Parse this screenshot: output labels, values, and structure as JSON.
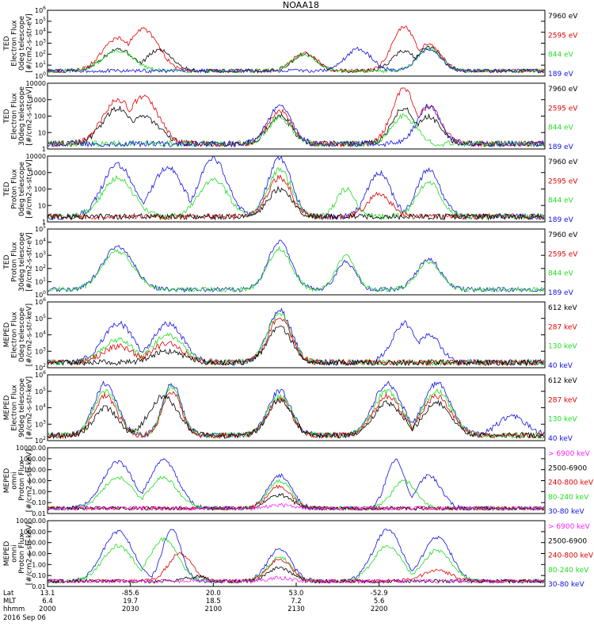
{
  "title": "NOAA18",
  "colors": {
    "black": "#000000",
    "red": "#e00000",
    "green": "#22dd22",
    "blue": "#1010e0",
    "magenta": "#ff20ff"
  },
  "chart_data": [
    {
      "type": "line",
      "ylabel": [
        "TED",
        "Electron Flux",
        "0deg telescope",
        "[#/cm2-s-str-eV]"
      ],
      "yscale": "log",
      "ylim": [
        1,
        1000000
      ],
      "yticks": [
        "10^0",
        "10^1",
        "10^2",
        "10^3",
        "10^4",
        "10^5",
        "10^6"
      ],
      "legend": [
        {
          "label": "7960 eV",
          "color": "black"
        },
        {
          "label": "2595 eV",
          "color": "red"
        },
        {
          "label": "844 eV",
          "color": "green"
        },
        {
          "label": "189 eV",
          "color": "blue"
        }
      ],
      "series": [
        {
          "color": "black",
          "peaks": [
            [
              8.5,
              300
            ],
            [
              13.5,
              250
            ],
            [
              31,
              100
            ],
            [
              43,
              200
            ],
            [
              46,
              400
            ]
          ]
        },
        {
          "color": "red",
          "peaks": [
            [
              8.5,
              3000
            ],
            [
              11.5,
              20000
            ],
            [
              31,
              150
            ],
            [
              43,
              30000
            ],
            [
              46,
              1000
            ]
          ]
        },
        {
          "color": "green",
          "peaks": [
            [
              8.5,
              200
            ],
            [
              31,
              100
            ],
            [
              46,
              300
            ]
          ]
        },
        {
          "color": "blue",
          "peaks": [
            [
              37.5,
              300
            ],
            [
              46,
              300
            ]
          ]
        }
      ]
    },
    {
      "type": "line",
      "ylabel": [
        "TED",
        "Electron Flux",
        "30deg telescope",
        "[#/cm2-s-str-eV]"
      ],
      "yscale": "log",
      "ylim": [
        1,
        10000
      ],
      "yticks": [
        "1",
        "10",
        "100",
        "1000",
        "10000"
      ],
      "legend": [
        {
          "label": "7960 eV",
          "color": "black"
        },
        {
          "label": "2595 eV",
          "color": "red"
        },
        {
          "label": "844 eV",
          "color": "green"
        },
        {
          "label": "189 eV",
          "color": "blue"
        }
      ],
      "series": [
        {
          "color": "black",
          "peaks": [
            [
              8.5,
              300
            ],
            [
              11.5,
              100
            ],
            [
              28,
              100
            ],
            [
              43,
              300
            ],
            [
              46,
              100
            ]
          ]
        },
        {
          "color": "red",
          "peaks": [
            [
              8.5,
              1000
            ],
            [
              11.5,
              1500
            ],
            [
              28,
              200
            ],
            [
              43,
              5000
            ],
            [
              46,
              400
            ]
          ]
        },
        {
          "color": "green",
          "peaks": [
            [
              28,
              80
            ],
            [
              43,
              100
            ]
          ]
        },
        {
          "color": "blue",
          "peaks": [
            [
              28,
              400
            ],
            [
              46,
              400
            ]
          ]
        }
      ]
    },
    {
      "type": "line",
      "ylabel": [
        "TED",
        "Proton Flux",
        "0deg telescope",
        "[#/cm2-s-str-eV]"
      ],
      "yscale": "log",
      "ylim": [
        1,
        10000
      ],
      "yticks": [
        "1",
        "10",
        "100",
        "1000",
        "10000"
      ],
      "legend": [
        {
          "label": "7960 eV",
          "color": "black"
        },
        {
          "label": "2595 eV",
          "color": "red"
        },
        {
          "label": "844 eV",
          "color": "green"
        },
        {
          "label": "189 eV",
          "color": "blue"
        }
      ],
      "series": [
        {
          "color": "blue",
          "peaks": [
            [
              8.5,
              3000
            ],
            [
              14.5,
              2000
            ],
            [
              20,
              7000
            ],
            [
              28,
              7000
            ],
            [
              40,
              1000
            ],
            [
              46,
              1500
            ]
          ]
        },
        {
          "color": "green",
          "peaks": [
            [
              8.5,
              500
            ],
            [
              20,
              400
            ],
            [
              28,
              1500
            ],
            [
              36,
              100
            ],
            [
              46,
              300
            ]
          ]
        },
        {
          "color": "red",
          "peaks": [
            [
              28,
              500
            ],
            [
              40,
              50
            ]
          ]
        },
        {
          "color": "black",
          "peaks": [
            [
              28,
              100
            ]
          ]
        }
      ]
    },
    {
      "type": "line",
      "ylabel": [
        "TED",
        "Proton Flux",
        "30deg telescope",
        "[#/cm2-s-str-eV]"
      ],
      "yscale": "log",
      "ylim": [
        1,
        100000
      ],
      "yticks": [
        "10^0",
        "10^1",
        "10^2",
        "10^3",
        "10^4",
        "10^5"
      ],
      "legend": [
        {
          "label": "7960 eV",
          "color": "black"
        },
        {
          "label": "2595 eV",
          "color": "red"
        },
        {
          "label": "844 eV",
          "color": "green"
        },
        {
          "label": "189 eV",
          "color": "blue"
        }
      ],
      "series": [
        {
          "color": "blue",
          "peaks": [
            [
              8.5,
              5000
            ],
            [
              28,
              10000
            ],
            [
              36,
              300
            ],
            [
              46,
              500
            ]
          ]
        },
        {
          "color": "green",
          "peaks": [
            [
              8.5,
              2000
            ],
            [
              28,
              3000
            ],
            [
              36,
              1000
            ],
            [
              46,
              300
            ]
          ]
        }
      ]
    },
    {
      "type": "line",
      "ylabel": [
        "MEPED",
        "Electron Flux",
        "0deg telescope",
        "[#/cm2-s-str-keV]"
      ],
      "yscale": "log",
      "ylim": [
        100,
        1000000
      ],
      "yticks": [
        "10^2",
        "10^3",
        "10^4",
        "10^5",
        "10^6"
      ],
      "legend": [
        {
          "label": "612 keV",
          "color": "black"
        },
        {
          "label": "287 keV",
          "color": "red"
        },
        {
          "label": "130 keV",
          "color": "green"
        },
        {
          "label": "40 keV",
          "color": "blue"
        }
      ],
      "series": [
        {
          "color": "blue",
          "peaks": [
            [
              8.5,
              50000
            ],
            [
              14.5,
              50000
            ],
            [
              28,
              300000
            ],
            [
              43,
              50000
            ],
            [
              46,
              10000
            ]
          ]
        },
        {
          "color": "green",
          "peaks": [
            [
              8.5,
              5000
            ],
            [
              14.5,
              10000
            ],
            [
              28,
              200000
            ]
          ]
        },
        {
          "color": "red",
          "peaks": [
            [
              8.5,
              2000
            ],
            [
              14.5,
              3000
            ],
            [
              28,
              100000
            ]
          ]
        },
        {
          "color": "black",
          "peaks": [
            [
              14.5,
              1000
            ],
            [
              28,
              30000
            ]
          ]
        }
      ]
    },
    {
      "type": "line",
      "ylabel": [
        "MEPED",
        "Electron Flux",
        "90deg telescope",
        "[#/cm2-s-str-keV]"
      ],
      "yscale": "log",
      "ylim": [
        100,
        1000000
      ],
      "yticks": [
        "10^2",
        "10^3",
        "10^4",
        "10^5",
        "10^6"
      ],
      "legend": [
        {
          "label": "612 keV",
          "color": "black"
        },
        {
          "label": "287 keV",
          "color": "red"
        },
        {
          "label": "130 keV",
          "color": "green"
        },
        {
          "label": "40 keV",
          "color": "blue"
        }
      ],
      "series": [
        {
          "color": "blue",
          "peaks": [
            [
              7,
              300000
            ],
            [
              15,
              300000
            ],
            [
              28,
              100000
            ],
            [
              41,
              300000
            ],
            [
              47,
              300000
            ],
            [
              56,
              3000
            ]
          ]
        },
        {
          "color": "green",
          "peaks": [
            [
              7,
              100000
            ],
            [
              15,
              200000
            ],
            [
              28,
              50000
            ],
            [
              41,
              100000
            ],
            [
              47,
              100000
            ]
          ]
        },
        {
          "color": "red",
          "peaks": [
            [
              7,
              50000
            ],
            [
              15,
              100000
            ],
            [
              28,
              30000
            ],
            [
              41,
              50000
            ],
            [
              47,
              50000
            ]
          ]
        },
        {
          "color": "black",
          "peaks": [
            [
              7,
              10000
            ],
            [
              14,
              50000
            ],
            [
              28,
              30000
            ],
            [
              41,
              20000
            ],
            [
              47,
              20000
            ]
          ]
        }
      ]
    },
    {
      "type": "line",
      "ylabel": [
        "MEPED",
        "omni",
        "Proton Flux",
        "[#/cm2-s-str-keV]"
      ],
      "yscale": "log",
      "ylim": [
        0.01,
        10000
      ],
      "yticks": [
        "0.01",
        "0.10",
        "1.00",
        "10.00",
        "100.00",
        "1000.00",
        "10000.00"
      ],
      "legend": [
        {
          "label": "> 6900 keV",
          "color": "magenta"
        },
        {
          "label": "2500-6900",
          "color": "black"
        },
        {
          "label": "240-800 keV",
          "color": "red"
        },
        {
          "label": "80-240 keV",
          "color": "green"
        },
        {
          "label": "30-80 keV",
          "color": "blue"
        }
      ],
      "series": [
        {
          "color": "blue",
          "peaks": [
            [
              8.5,
              500
            ],
            [
              14,
              800
            ],
            [
              28,
              30
            ],
            [
              42,
              800
            ],
            [
              46,
              30
            ]
          ]
        },
        {
          "color": "green",
          "peaks": [
            [
              8.5,
              20
            ],
            [
              14,
              20
            ],
            [
              28,
              10
            ],
            [
              43,
              10
            ]
          ]
        },
        {
          "color": "red",
          "peaks": [
            [
              28,
              3
            ]
          ]
        },
        {
          "color": "black",
          "peaks": [
            [
              28,
              0.5
            ]
          ]
        },
        {
          "color": "magenta",
          "peaks": [
            [
              28,
              0.06
            ]
          ]
        }
      ]
    },
    {
      "type": "line",
      "ylabel": [
        "MEPED",
        "omni",
        "Proton Flux",
        "[#/cm2-s-str-keV]"
      ],
      "yscale": "log",
      "ylim": [
        0.01,
        10000
      ],
      "yticks": [
        "0.01",
        "0.10",
        "1.00",
        "10.00",
        "100.00",
        "1000.00",
        "10000.00"
      ],
      "legend": [
        {
          "label": "> 6900 keV",
          "color": "magenta"
        },
        {
          "label": "2500-6900",
          "color": "black"
        },
        {
          "label": "240-800 keV",
          "color": "red"
        },
        {
          "label": "80-240 keV",
          "color": "green"
        },
        {
          "label": "30-80 keV",
          "color": "blue"
        }
      ],
      "series": [
        {
          "color": "blue",
          "peaks": [
            [
              8.5,
              1000
            ],
            [
              15,
              1500
            ],
            [
              28,
              30
            ],
            [
              41,
              1500
            ],
            [
              47,
              300
            ]
          ]
        },
        {
          "color": "green",
          "peaks": [
            [
              8.5,
              50
            ],
            [
              14,
              200
            ],
            [
              28,
              5
            ],
            [
              41,
              50
            ],
            [
              47,
              20
            ]
          ]
        },
        {
          "color": "red",
          "peaks": [
            [
              16,
              10
            ],
            [
              28,
              3
            ],
            [
              47,
              0.3
            ]
          ]
        },
        {
          "color": "black",
          "peaks": [
            [
              18,
              0.08
            ],
            [
              28,
              0.5
            ]
          ]
        },
        {
          "color": "magenta",
          "peaks": [
            [
              28,
              0.06
            ]
          ]
        }
      ]
    }
  ],
  "xaxis": {
    "range_minutes": [
      0,
      60
    ],
    "row_labels": [
      "Lat",
      "MLT",
      "hhmm"
    ],
    "ticks": [
      {
        "minute": 0,
        "lat": "13.1",
        "mlt": "6.4",
        "hhmm": "2000"
      },
      {
        "minute": 10,
        "lat": "-85.6",
        "mlt": "19.7",
        "hhmm": "2030"
      },
      {
        "minute": 20,
        "lat": "20.0",
        "mlt": "18.5",
        "hhmm": "2100"
      },
      {
        "minute": 30,
        "lat": "53.0",
        "mlt": "7.2",
        "hhmm": "2130"
      },
      {
        "minute": 40,
        "lat": "-52.9",
        "mlt": "5.6",
        "hhmm": "2200"
      }
    ],
    "date": "2016 Sep 06"
  }
}
